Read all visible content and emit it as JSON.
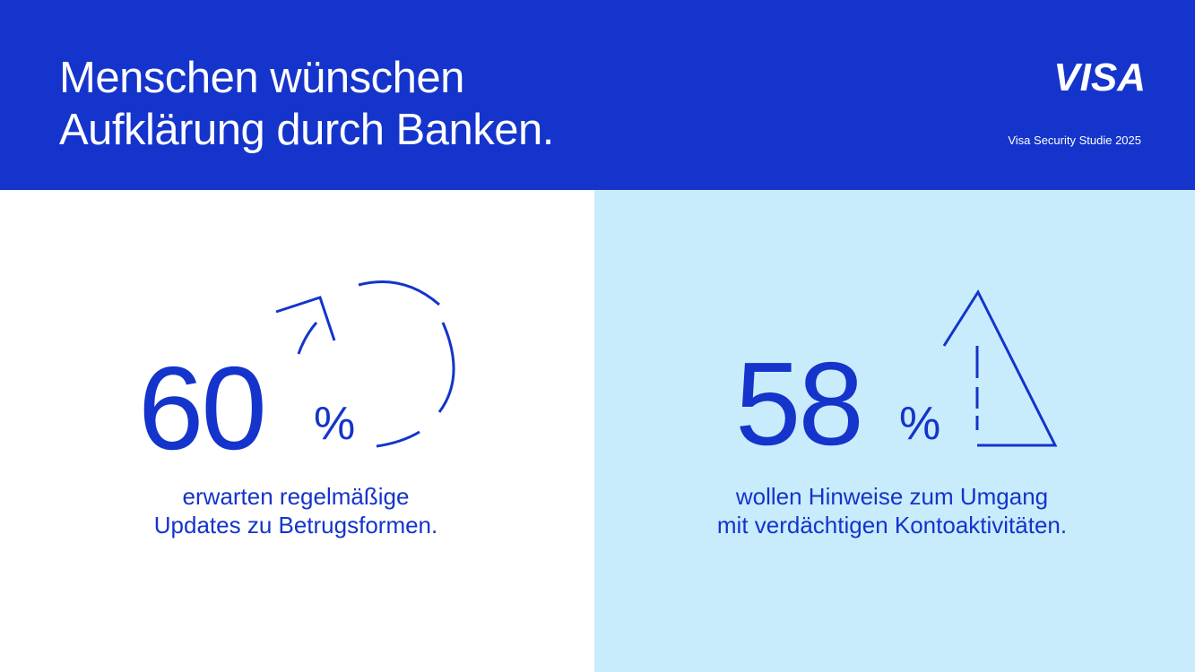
{
  "header": {
    "headline_line1": "Menschen wünschen",
    "headline_line2": "Aufklärung durch Banken.",
    "logo_text": "VISA",
    "study_label": "Visa Security Studie 2025"
  },
  "stats": [
    {
      "number": "60",
      "unit": "%",
      "caption_line1": "erwarten regelmäßige",
      "caption_line2": "Updates zu Betrugsformen.",
      "icon": "refresh-arrow-icon"
    },
    {
      "number": "58",
      "unit": "%",
      "caption_line1": "wollen Hinweise zum Umgang",
      "caption_line2": "mit verdächtigen Kontoaktivitäten.",
      "icon": "warning-triangle-icon"
    }
  ],
  "colors": {
    "brand_blue": "#1434cb",
    "light_blue_panel": "#c9ecfc",
    "white": "#ffffff"
  }
}
